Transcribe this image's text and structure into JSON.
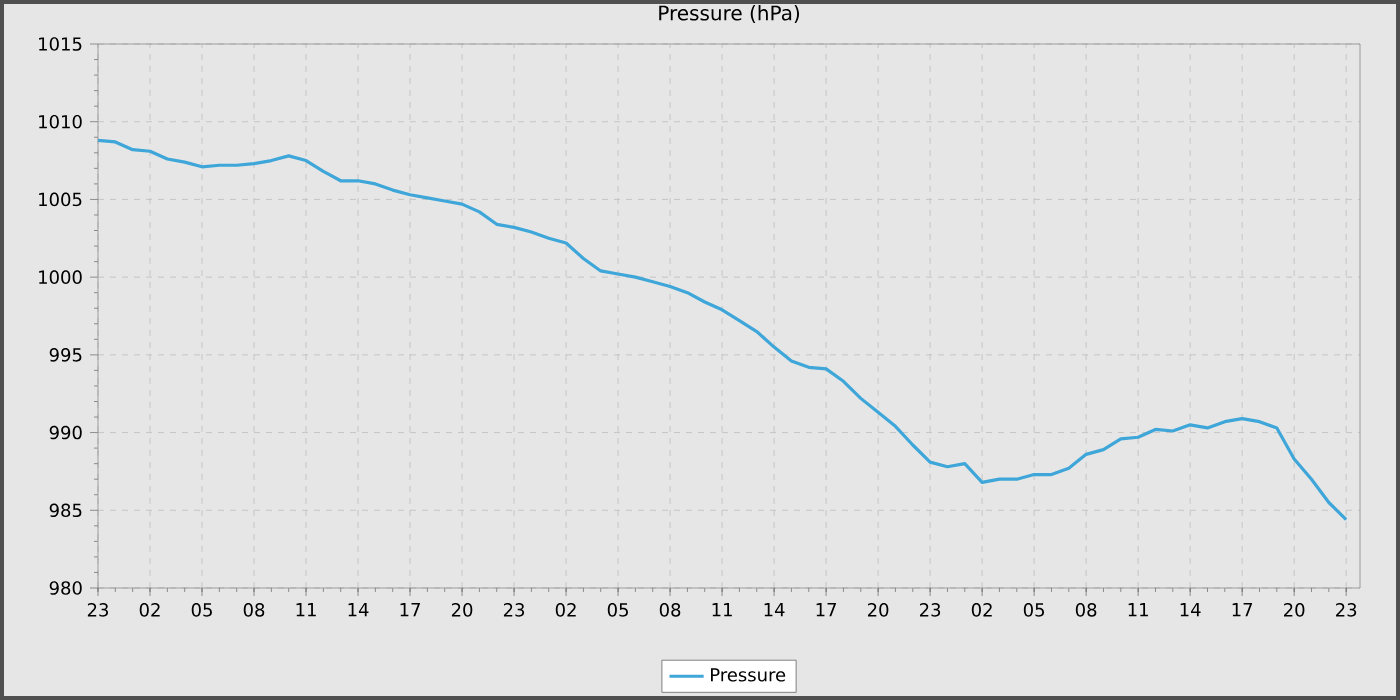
{
  "chart_data": {
    "type": "line",
    "title": "Pressure (hPa)",
    "categories": [
      "23",
      null,
      null,
      "02",
      null,
      null,
      "05",
      null,
      null,
      "08",
      null,
      null,
      "11",
      null,
      null,
      "14",
      null,
      null,
      "17",
      null,
      null,
      "20",
      null,
      null,
      "23",
      null,
      null,
      "02",
      null,
      null,
      "05",
      null,
      null,
      "08",
      null,
      null,
      "11",
      null,
      null,
      "14",
      null,
      null,
      "17",
      null,
      null,
      "20",
      null,
      null,
      "23",
      null,
      null,
      "02",
      null,
      null,
      "05",
      null,
      null,
      "08",
      null,
      null,
      "11",
      null,
      null,
      "14",
      null,
      null,
      "17",
      null,
      null,
      "20",
      null,
      null,
      "23"
    ],
    "series": [
      {
        "name": "Pressure",
        "color": "#3ea6d9",
        "values": [
          1008.8,
          1008.7,
          1008.2,
          1008.1,
          1007.6,
          1007.4,
          1007.1,
          1007.2,
          1007.2,
          1007.3,
          1007.5,
          1007.8,
          1007.5,
          1006.8,
          1006.2,
          1006.2,
          1006.0,
          1005.6,
          1005.3,
          1005.1,
          1004.9,
          1004.7,
          1004.2,
          1003.4,
          1003.2,
          1002.9,
          1002.5,
          1002.2,
          1001.2,
          1000.4,
          1000.2,
          1000.0,
          999.7,
          999.4,
          999.0,
          998.4,
          997.9,
          997.2,
          996.5,
          995.5,
          994.6,
          994.2,
          994.1,
          993.3,
          992.2,
          991.3,
          990.4,
          989.2,
          988.1,
          987.8,
          988.0,
          986.8,
          987.0,
          987.0,
          987.3,
          987.3,
          987.7,
          988.6,
          988.9,
          989.6,
          989.7,
          990.2,
          990.1,
          990.5,
          990.3,
          990.7,
          990.9,
          990.7,
          990.3,
          988.3,
          987.0,
          985.5,
          984.4
        ]
      }
    ],
    "ylim": [
      980,
      1015
    ],
    "yticks": [
      980,
      985,
      990,
      995,
      1000,
      1005,
      1010,
      1015
    ],
    "grid": true,
    "legend": "bottom"
  }
}
